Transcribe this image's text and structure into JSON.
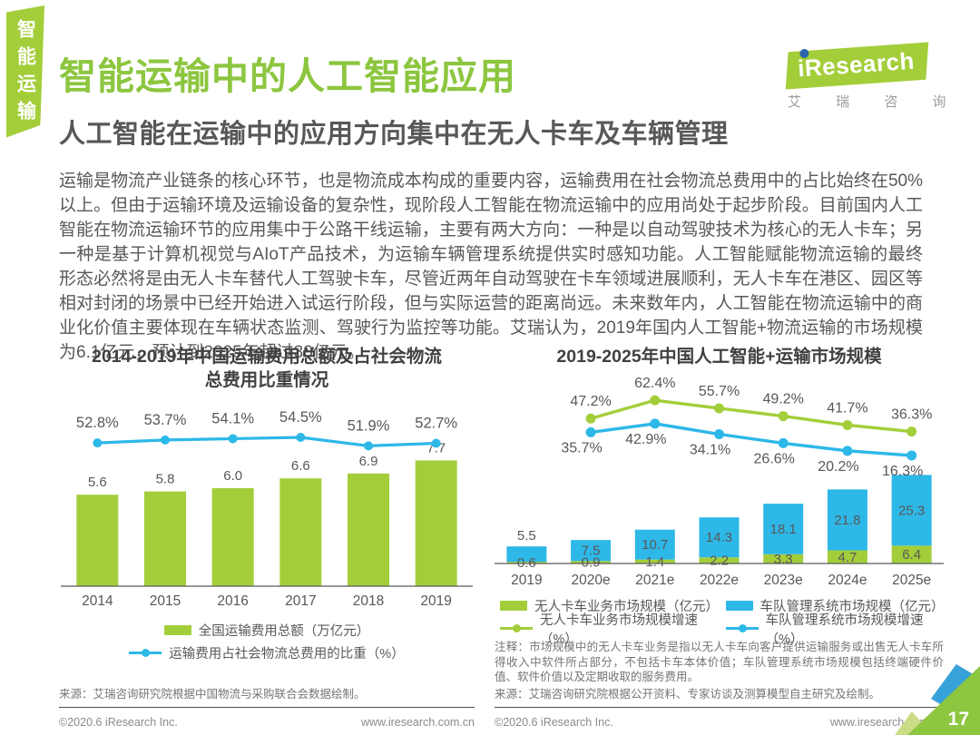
{
  "page": {
    "side_tab": "智能运输",
    "logo": {
      "brand_i": "i",
      "brand_rest": "Research",
      "subtitle": "艾 瑞 咨 询"
    },
    "title": "智能运输中的人工智能应用",
    "subtitle": "人工智能在运输中的应用方向集中在无人卡车及车辆管理",
    "body": "运输是物流产业链条的核心环节，也是物流成本构成的重要内容，运输费用在社会物流总费用中的占比始终在50%以上。但由于运输环境及运输设备的复杂性，现阶段人工智能在物流运输中的应用尚处于起步阶段。目前国内人工智能在物流运输环节的应用集中于公路干线运输，主要有两大方向：一种是以自动驾驶技术为核心的无人卡车；另一种是基于计算机视觉与AIoT产品技术，为运输车辆管理系统提供实时感知功能。人工智能赋能物流运输的最终形态必然将是由无人卡车替代人工驾驶卡车，尽管近两年自动驾驶在卡车领域进展顺利，无人卡车在港区、园区等相对封闭的场景中已经开始进入试运行阶段，但与实际运营的距离尚远。未来数年内，人工智能在物流运输中的商业化价值主要体现在车辆状态监测、驾驶行为监控等功能。艾瑞认为，2019年国内人工智能+物流运输的市场规模为6.1亿元，预计到2025年超过30亿元。",
    "page_number": "17"
  },
  "left_section": {
    "source": "来源：艾瑞咨询研究院根据中国物流与采购联合会数据绘制。",
    "copyright": "©2020.6 iResearch Inc.",
    "website": "www.iresearch.com.cn"
  },
  "right_section": {
    "note": "注释：市场规模中的无人卡车业务是指以无人卡车向客户提供运输服务或出售无人卡车所得收入中软件所占部分，不包括卡车本体价值；车队管理系统市场规模包括终端硬件价值、软件价值以及定期收取的服务费用。",
    "source": "来源：艾瑞咨询研究院根据公开资料、专家访谈及测算模型自主研究及绘制。",
    "copyright": "©2020.6 iResearch Inc.",
    "website": "www.iresearch.com.cn"
  },
  "colors": {
    "green": "#a3ce3a",
    "blue": "#2db8e8",
    "label_gray": "#595757",
    "title_green": "#8cc63f"
  },
  "chart_data": [
    {
      "type": "bar",
      "title": "2014-2019年中国运输费用总额及占社会物流总费用比重情况",
      "title_lines": [
        "2014-2019年中国运输费用总额及占社会物流",
        "总费用比重情况"
      ],
      "categories": [
        "2014",
        "2015",
        "2016",
        "2017",
        "2018",
        "2019"
      ],
      "series": [
        {
          "name": "全国运输费用总额（万亿元）",
          "kind": "bar",
          "color": "#a3ce3a",
          "values": [
            5.6,
            5.8,
            6.0,
            6.6,
            6.9,
            7.7
          ]
        },
        {
          "name": "运输费用占社会物流总费用的比重（%）",
          "kind": "line",
          "color": "#2db8e8",
          "unit": "%",
          "values": [
            52.8,
            53.7,
            54.1,
            54.5,
            51.9,
            52.7
          ]
        }
      ],
      "ylim": [
        0,
        9
      ],
      "grid": false,
      "legend_position": "bottom"
    },
    {
      "type": "bar",
      "subtype": "stacked-bar+line",
      "title": "2019-2025年中国人工智能+运输市场规模",
      "categories": [
        "2019",
        "2020e",
        "2021e",
        "2022e",
        "2023e",
        "2024e",
        "2025e"
      ],
      "series": [
        {
          "name": "无人卡车业务市场规模（亿元）",
          "kind": "bar",
          "stack": "bottom",
          "color": "#a3ce3a",
          "values": [
            0.6,
            0.9,
            1.4,
            2.2,
            3.3,
            4.7,
            6.4
          ]
        },
        {
          "name": "车队管理系统市场规模（亿元）",
          "kind": "bar",
          "stack": "top",
          "color": "#2db8e8",
          "values": [
            5.5,
            7.5,
            10.7,
            14.3,
            18.1,
            21.8,
            25.3
          ]
        },
        {
          "name": "无人卡车业务市场规模增速（%）",
          "kind": "line",
          "color": "#a3ce3a",
          "unit": "%",
          "values": [
            null,
            47.2,
            62.4,
            55.7,
            49.2,
            41.7,
            36.3
          ]
        },
        {
          "name": "车队管理系统市场规模增速（%）",
          "kind": "line",
          "color": "#2db8e8",
          "unit": "%",
          "values": [
            null,
            35.7,
            42.9,
            34.1,
            26.6,
            20.2,
            16.3
          ]
        }
      ],
      "ylim": [
        0,
        35
      ],
      "grid": false,
      "legend_position": "bottom"
    }
  ]
}
